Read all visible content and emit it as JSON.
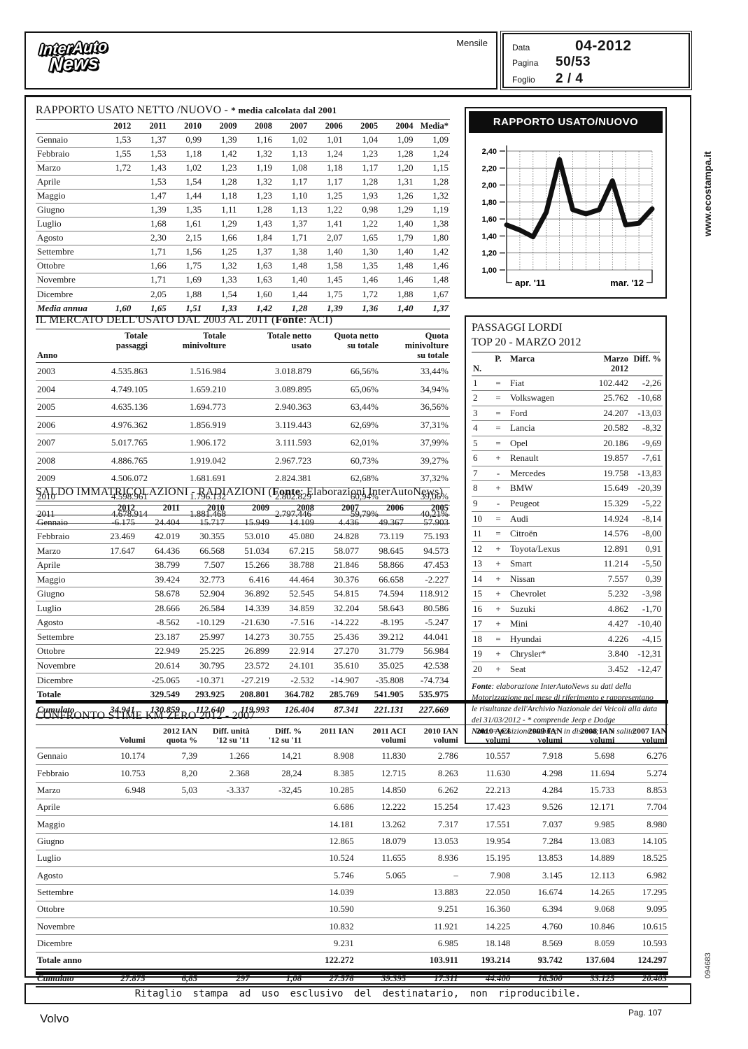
{
  "page": {
    "watermark": "www.ecostampa.it",
    "code": "094683",
    "subject": "Volvo",
    "page_number": "Pag. 107"
  },
  "header": {
    "frequency": "Mensile",
    "logo": {
      "line1": "InterAuto",
      "line2": "News"
    },
    "meta": [
      {
        "label": "Data",
        "value": "04-2012"
      },
      {
        "label": "Pagina",
        "value": "50/53"
      },
      {
        "label": "Foglio",
        "value": "2 / 4"
      }
    ]
  },
  "footer": {
    "disclaimer": "Ritaglio stampa ad uso esclusivo del destinatario, non riproducibile."
  },
  "sections": {
    "rapporto": {
      "title": "RAPPORTO USATO NETTO /NUOVO -",
      "note": "* media calcolata dal 2001",
      "columns": [
        "",
        "2012",
        "2011",
        "2010",
        "2009",
        "2008",
        "2007",
        "2006",
        "2005",
        "2004",
        "Media*"
      ],
      "rows": [
        [
          "Gennaio",
          "1,53",
          "1,37",
          "0,99",
          "1,39",
          "1,16",
          "1,02",
          "1,01",
          "1,04",
          "1,09",
          "1,09"
        ],
        [
          "Febbraio",
          "1,55",
          "1,53",
          "1,18",
          "1,42",
          "1,32",
          "1,13",
          "1,24",
          "1,23",
          "1,28",
          "1,24"
        ],
        [
          "Marzo",
          "1,72",
          "1,43",
          "1,02",
          "1,23",
          "1,19",
          "1,08",
          "1,18",
          "1,17",
          "1,20",
          "1,15"
        ],
        [
          "Aprile",
          "",
          "1,53",
          "1,54",
          "1,28",
          "1,32",
          "1,17",
          "1,17",
          "1,28",
          "1,31",
          "1,28"
        ],
        [
          "Maggio",
          "",
          "1,47",
          "1,44",
          "1,18",
          "1,23",
          "1,10",
          "1,25",
          "1,93",
          "1,26",
          "1,32"
        ],
        [
          "Giugno",
          "",
          "1,39",
          "1,35",
          "1,11",
          "1,28",
          "1,13",
          "1,22",
          "0,98",
          "1,29",
          "1,19"
        ],
        [
          "Luglio",
          "",
          "1,68",
          "1,61",
          "1,29",
          "1,43",
          "1,37",
          "1,41",
          "1,22",
          "1,40",
          "1,38"
        ],
        [
          "Agosto",
          "",
          "2,30",
          "2,15",
          "1,66",
          "1,84",
          "1,71",
          "2,07",
          "1,65",
          "1,79",
          "1,80"
        ],
        [
          "Settembre",
          "",
          "1,71",
          "1,56",
          "1,25",
          "1,37",
          "1,38",
          "1,40",
          "1,30",
          "1,40",
          "1,42"
        ],
        [
          "Ottobre",
          "",
          "1,66",
          "1,75",
          "1,32",
          "1,63",
          "1,48",
          "1,58",
          "1,35",
          "1,48",
          "1,46"
        ],
        [
          "Novembre",
          "",
          "1,71",
          "1,69",
          "1,33",
          "1,63",
          "1,40",
          "1,45",
          "1,46",
          "1,46",
          "1,48"
        ],
        [
          "Dicembre",
          "",
          "2,05",
          "1,88",
          "1,54",
          "1,60",
          "1,44",
          "1,75",
          "1,72",
          "1,88",
          "1,67"
        ],
        [
          "Media annua",
          "1,60",
          "1,65",
          "1,51",
          "1,33",
          "1,42",
          "1,28",
          "1,39",
          "1,36",
          "1,40",
          "1,37"
        ]
      ]
    },
    "mercato": {
      "title_pre": "IL MERCATO DELL'USATO DAL 2003 AL 2011 (",
      "title_bold": "Fonte",
      "title_post": ": ACI)",
      "columns": [
        "Anno",
        "Totale\npassaggi",
        "Totale\nminivolture",
        "Totale netto\nusato",
        "Quota netto\nsu totale",
        "Quota minivolture\nsu totale"
      ],
      "rows": [
        [
          "2003",
          "4.535.863",
          "1.516.984",
          "3.018.879",
          "66,56%",
          "33,44%"
        ],
        [
          "2004",
          "4.749.105",
          "1.659.210",
          "3.089.895",
          "65,06%",
          "34,94%"
        ],
        [
          "2005",
          "4.635.136",
          "1.694.773",
          "2.940.363",
          "63,44%",
          "36,56%"
        ],
        [
          "2006",
          "4.976.362",
          "1.856.919",
          "3.119.443",
          "62,69%",
          "37,31%"
        ],
        [
          "2007",
          "5.017.765",
          "1.906.172",
          "3.111.593",
          "62,01%",
          "37,99%"
        ],
        [
          "2008",
          "4.886.765",
          "1.919.042",
          "2.967.723",
          "60,73%",
          "39,27%"
        ],
        [
          "2009",
          "4.506.072",
          "1.681.691",
          "2.824.381",
          "62,68%",
          "37,32%"
        ],
        [
          "2010",
          "4.598.961",
          "1.796.132",
          "2.802.829",
          "60,94%",
          "39,06%"
        ],
        [
          "2011",
          "4.678.914",
          "1.881.468",
          "2.797.446",
          "59,79%",
          "40,21%"
        ]
      ]
    },
    "saldo": {
      "title_pre": "SALDO IMMATRICOLAZIONI - RADIAZIONI (",
      "title_bold": "Fonte",
      "title_post": ": Elaborazioni InterAutoNews)",
      "columns": [
        "",
        "2012",
        "2011",
        "2010",
        "2009",
        "2008",
        "2007",
        "2006",
        "2005"
      ],
      "rows": [
        [
          "Gennaio",
          "-6.175",
          "24.404",
          "15.717",
          "15.949",
          "14.109",
          "4.436",
          "49.367",
          "57.903"
        ],
        [
          "Febbraio",
          "23.469",
          "42.019",
          "30.355",
          "53.010",
          "45.080",
          "24.828",
          "73.119",
          "75.193"
        ],
        [
          "Marzo",
          "17.647",
          "64.436",
          "66.568",
          "51.034",
          "67.215",
          "58.077",
          "98.645",
          "94.573"
        ],
        [
          "Aprile",
          "",
          "38.799",
          "7.507",
          "15.266",
          "38.788",
          "21.846",
          "58.866",
          "47.453"
        ],
        [
          "Maggio",
          "",
          "39.424",
          "32.773",
          "6.416",
          "44.464",
          "30.376",
          "66.658",
          "-2.227"
        ],
        [
          "Giugno",
          "",
          "58.678",
          "52.904",
          "36.892",
          "52.545",
          "54.815",
          "74.594",
          "118.912"
        ],
        [
          "Luglio",
          "",
          "28.666",
          "26.584",
          "14.339",
          "34.859",
          "32.204",
          "58.643",
          "80.586"
        ],
        [
          "Agosto",
          "",
          "-8.562",
          "-10.129",
          "-21.630",
          "-7.516",
          "-14.222",
          "-8.195",
          "-5.247"
        ],
        [
          "Settembre",
          "",
          "23.187",
          "25.997",
          "14.273",
          "30.755",
          "25.436",
          "39.212",
          "44.041"
        ],
        [
          "Ottobre",
          "",
          "22.949",
          "25.225",
          "26.899",
          "22.914",
          "27.270",
          "31.779",
          "56.984"
        ],
        [
          "Novembre",
          "",
          "20.614",
          "30.795",
          "23.572",
          "24.101",
          "35.610",
          "35.025",
          "42.538"
        ],
        [
          "Dicembre",
          "",
          "-25.065",
          "-10.371",
          "-27.219",
          "-2.532",
          "-14.907",
          "-35.808",
          "-74.734"
        ],
        [
          "Totale",
          "",
          "329.549",
          "293.925",
          "208.801",
          "364.782",
          "285.769",
          "541.905",
          "535.975"
        ],
        [
          "Cumulato",
          "34.941",
          "130.859",
          "112.640",
          "119.993",
          "126.404",
          "87.341",
          "221.131",
          "227.669"
        ]
      ]
    },
    "confronto": {
      "title": "CONFRONTO STIME KM ZERO 2012 - 2007",
      "columns": [
        "",
        "\nVolumi",
        "2012 IAN\nquota %",
        "Diff. unità\n'12 su '11",
        "Diff. %\n'12 su '11",
        "2011 IAN",
        "2011 ACI\nvolumi",
        "2010 IAN\nvolumi",
        "2010 ACI\nvolumi",
        "2009 IAN\nvolumi",
        "2008 IAN\nvolumi",
        "2007 IAN\nvolumi"
      ],
      "rows": [
        [
          "Gennaio",
          "10.174",
          "7,39",
          "1.266",
          "14,21",
          "8.908",
          "11.830",
          "2.786",
          "10.557",
          "7.918",
          "5.698",
          "6.276"
        ],
        [
          "Febbraio",
          "10.753",
          "8,20",
          "2.368",
          "28,24",
          "8.385",
          "12.715",
          "8.263",
          "11.630",
          "4.298",
          "11.694",
          "5.274"
        ],
        [
          "Marzo",
          "6.948",
          "5,03",
          "-3.337",
          "-32,45",
          "10.285",
          "14.850",
          "6.262",
          "22.213",
          "4.284",
          "15.733",
          "8.853"
        ],
        [
          "Aprile",
          "",
          "",
          "",
          "",
          "6.686",
          "12.222",
          "15.254",
          "17.423",
          "9.526",
          "12.171",
          "7.704"
        ],
        [
          "Maggio",
          "",
          "",
          "",
          "",
          "14.181",
          "13.262",
          "7.317",
          "17.551",
          "7.037",
          "9.985",
          "8.980"
        ],
        [
          "Giugno",
          "",
          "",
          "",
          "",
          "12.865",
          "18.079",
          "13.053",
          "19.954",
          "7.284",
          "13.083",
          "14.105"
        ],
        [
          "Luglio",
          "",
          "",
          "",
          "",
          "10.524",
          "11.655",
          "8.936",
          "15.195",
          "13.853",
          "14.889",
          "18.525"
        ],
        [
          "Agosto",
          "",
          "",
          "",
          "",
          "5.746",
          "5.065",
          "–",
          "7.908",
          "3.145",
          "12.113",
          "6.982"
        ],
        [
          "Settembre",
          "",
          "",
          "",
          "",
          "14.039",
          "",
          "13.883",
          "22.050",
          "16.674",
          "14.265",
          "17.295"
        ],
        [
          "Ottobre",
          "",
          "",
          "",
          "",
          "10.590",
          "",
          "9.251",
          "16.360",
          "6.394",
          "9.068",
          "9.095"
        ],
        [
          "Novembre",
          "",
          "",
          "",
          "",
          "10.832",
          "",
          "11.921",
          "14.225",
          "4.760",
          "10.846",
          "10.615"
        ],
        [
          "Dicembre",
          "",
          "",
          "",
          "",
          "9.231",
          "",
          "6.985",
          "18.148",
          "8.569",
          "8.059",
          "10.593"
        ],
        [
          "Totale anno",
          "",
          "",
          "",
          "",
          "122.272",
          "",
          "103.911",
          "193.214",
          "93.742",
          "137.604",
          "124.297"
        ],
        [
          "Cumulato",
          "27.875",
          "6,85",
          "297",
          "1,08",
          "27.578",
          "39.395",
          "17.311",
          "44.400",
          "16.500",
          "33.125",
          "20.403"
        ]
      ]
    },
    "passaggi": {
      "title_line1": "PASSAGGI LORDI",
      "title_line2": "TOP 20 - MARZO 2012",
      "columns": [
        "N.",
        "P.",
        "Marca",
        "Marzo 2012",
        "Diff. %"
      ],
      "rows": [
        [
          "1",
          "=",
          "Fiat",
          "102.442",
          "-2,26"
        ],
        [
          "2",
          "=",
          "Volkswagen",
          "25.762",
          "-10,68"
        ],
        [
          "3",
          "=",
          "Ford",
          "24.207",
          "-13,03"
        ],
        [
          "4",
          "=",
          "Lancia",
          "20.582",
          "-8,32"
        ],
        [
          "5",
          "=",
          "Opel",
          "20.186",
          "-9,69"
        ],
        [
          "6",
          "+",
          "Renault",
          "19.857",
          "-7,61"
        ],
        [
          "7",
          "-",
          "Mercedes",
          "19.758",
          "-13,83"
        ],
        [
          "8",
          "+",
          "BMW",
          "15.649",
          "-20,39"
        ],
        [
          "9",
          "-",
          "Peugeot",
          "15.329",
          "-5,22"
        ],
        [
          "10",
          "=",
          "Audi",
          "14.924",
          "-8,14"
        ],
        [
          "11",
          "=",
          "Citroën",
          "14.576",
          "-8,00"
        ],
        [
          "12",
          "+",
          "Toyota/Lexus",
          "12.891",
          "0,91"
        ],
        [
          "13",
          "+",
          "Smart",
          "11.214",
          "-5,50"
        ],
        [
          "14",
          "+",
          "Nissan",
          "7.557",
          "0,39"
        ],
        [
          "15",
          "+",
          "Chevrolet",
          "5.232",
          "-3,98"
        ],
        [
          "16",
          "+",
          "Suzuki",
          "4.862",
          "-1,70"
        ],
        [
          "17",
          "+",
          "Mini",
          "4.427",
          "-10,40"
        ],
        [
          "18",
          "=",
          "Hyundai",
          "4.226",
          "-4,15"
        ],
        [
          "19",
          "+",
          "Chrysler*",
          "3.840",
          "-12,31"
        ],
        [
          "20",
          "+",
          "Seat",
          "3.452",
          "-12,47"
        ]
      ],
      "note_fonte_label": "Fonte",
      "note_fonte": ": elaborazione InterAutoNews su dati della Motorizzazione nel mese di riferimento e rappresentano le risultanze dell'Archivio Nazionale dei Veicoli alla data del 31/03/2012 - * comprende Jeep e Dodge",
      "note_nota_label": "Nota",
      "note_nota": ": = posizione stabile; - in discesa; + in salita"
    }
  },
  "chart_data": {
    "type": "line",
    "title": "RAPPORTO USATO/NUOVO",
    "x": [
      "apr '11",
      "mag '11",
      "giu '11",
      "lug '11",
      "ago '11",
      "set '11",
      "ott '11",
      "nov '11",
      "dic '11",
      "gen '12",
      "feb '12",
      "mar '12"
    ],
    "values": [
      1.53,
      1.47,
      1.39,
      1.68,
      2.3,
      1.71,
      1.66,
      1.71,
      2.05,
      1.53,
      1.55,
      1.72
    ],
    "x_axis_labels_shown": [
      "apr. '11",
      "mar. '12"
    ],
    "y_ticks": [
      "1,00",
      "1,20",
      "1,40",
      "1,60",
      "1,80",
      "2,00",
      "2,20",
      "2,40"
    ],
    "ylim": [
      1.0,
      2.4
    ],
    "grid": true,
    "legend": false
  }
}
